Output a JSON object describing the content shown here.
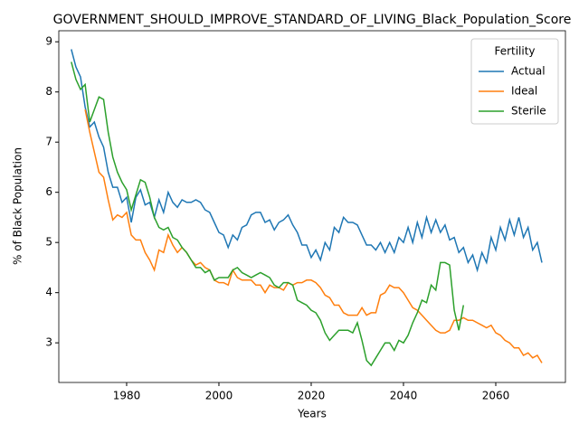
{
  "chart_data": {
    "type": "line",
    "title": "GOVERNMENT_SHOULD_IMPROVE_STANDARD_OF_LIVING_Black_Population_Score",
    "xlabel": "Years",
    "ylabel": "% of Black Population",
    "legend_title": "Fertility",
    "legend": "upper right",
    "xlim": [
      1965.3,
      2075.1
    ],
    "ylim": [
      2.21,
      9.22
    ],
    "xticks": [
      1980,
      2000,
      2020,
      2040,
      2060
    ],
    "yticks": [
      3,
      4,
      5,
      6,
      7,
      8,
      9
    ],
    "x": [
      1968,
      1969,
      1970,
      1971,
      1972,
      1973,
      1974,
      1975,
      1976,
      1977,
      1978,
      1979,
      1980,
      1981,
      1982,
      1983,
      1984,
      1985,
      1986,
      1987,
      1988,
      1989,
      1990,
      1991,
      1992,
      1993,
      1994,
      1995,
      1996,
      1997,
      1998,
      1999,
      2000,
      2001,
      2002,
      2003,
      2004,
      2005,
      2006,
      2007,
      2008,
      2009,
      2010,
      2011,
      2012,
      2013,
      2014,
      2015,
      2016,
      2017,
      2018,
      2019,
      2020,
      2021,
      2022,
      2023,
      2024,
      2025,
      2026,
      2027,
      2028,
      2029,
      2030,
      2031,
      2032,
      2033,
      2034,
      2035,
      2036,
      2037,
      2038,
      2039,
      2040,
      2041,
      2042,
      2043,
      2044,
      2045,
      2046,
      2047,
      2048,
      2049,
      2050,
      2051,
      2052,
      2053,
      2054,
      2055,
      2056,
      2057,
      2058,
      2059,
      2060,
      2061,
      2062,
      2063,
      2064,
      2065,
      2066,
      2067,
      2068,
      2069,
      2070
    ],
    "series": [
      {
        "name": "Actual",
        "color": "#1f77b4",
        "values": [
          8.85,
          8.5,
          8.3,
          7.7,
          7.3,
          7.4,
          7.1,
          6.9,
          6.4,
          6.1,
          6.1,
          5.8,
          5.9,
          5.4,
          5.9,
          6.05,
          5.75,
          5.8,
          5.5,
          5.85,
          5.6,
          6.0,
          5.8,
          5.7,
          5.85,
          5.8,
          5.8,
          5.85,
          5.8,
          5.65,
          5.6,
          5.4,
          5.2,
          5.15,
          4.9,
          5.15,
          5.05,
          5.3,
          5.35,
          5.55,
          5.6,
          5.6,
          5.4,
          5.45,
          5.25,
          5.4,
          5.45,
          5.55,
          5.35,
          5.2,
          4.95,
          4.95,
          4.7,
          4.85,
          4.65,
          5.0,
          4.85,
          5.3,
          5.2,
          5.5,
          5.4,
          5.4,
          5.35,
          5.15,
          4.95,
          4.95,
          4.85,
          5.0,
          4.8,
          5.0,
          4.8,
          5.1,
          5.0,
          5.3,
          5.0,
          5.4,
          5.1,
          5.5,
          5.2,
          5.45,
          5.2,
          5.35,
          5.05,
          5.1,
          4.8,
          4.9,
          4.6,
          4.75,
          4.45,
          4.8,
          4.6,
          5.1,
          4.85,
          5.3,
          5.05,
          5.45,
          5.15,
          5.5,
          5.1,
          5.3,
          4.85,
          5.0,
          4.6
        ]
      },
      {
        "name": "Ideal",
        "color": "#ff7f0e",
        "values": [
          null,
          null,
          null,
          7.65,
          7.2,
          6.8,
          6.4,
          6.3,
          5.85,
          5.45,
          5.55,
          5.5,
          5.6,
          5.15,
          5.05,
          5.05,
          4.8,
          4.65,
          4.45,
          4.85,
          4.8,
          5.15,
          4.95,
          4.8,
          4.9,
          4.8,
          4.65,
          4.55,
          4.6,
          4.5,
          4.45,
          4.25,
          4.2,
          4.2,
          4.15,
          4.45,
          4.3,
          4.25,
          4.25,
          4.25,
          4.15,
          4.15,
          4.0,
          4.15,
          4.1,
          4.1,
          4.05,
          4.2,
          4.15,
          4.2,
          4.2,
          4.25,
          4.25,
          4.2,
          4.1,
          3.95,
          3.9,
          3.75,
          3.75,
          3.6,
          3.55,
          3.55,
          3.55,
          3.7,
          3.55,
          3.6,
          3.6,
          3.95,
          4.0,
          4.15,
          4.1,
          4.1,
          4.0,
          3.85,
          3.7,
          3.65,
          3.55,
          3.45,
          3.35,
          3.25,
          3.2,
          3.2,
          3.25,
          3.45,
          3.45,
          3.5,
          3.45,
          3.45,
          3.4,
          3.35,
          3.3,
          3.35,
          3.2,
          3.15,
          3.05,
          3.0,
          2.9,
          2.9,
          2.75,
          2.8,
          2.7,
          2.75,
          2.6
        ]
      },
      {
        "name": "Sterile",
        "color": "#2ca02c",
        "values": [
          8.6,
          8.25,
          8.05,
          8.15,
          7.4,
          7.65,
          7.9,
          7.85,
          7.2,
          6.7,
          6.4,
          6.2,
          6.05,
          5.65,
          5.95,
          6.25,
          6.2,
          5.9,
          5.5,
          5.3,
          5.25,
          5.3,
          5.1,
          5.05,
          4.9,
          4.8,
          4.65,
          4.5,
          4.5,
          4.4,
          4.45,
          4.25,
          4.3,
          4.3,
          4.3,
          4.45,
          4.5,
          4.4,
          4.35,
          4.3,
          4.35,
          4.4,
          4.35,
          4.3,
          4.15,
          4.1,
          4.2,
          4.2,
          4.15,
          3.85,
          3.8,
          3.75,
          3.65,
          3.6,
          3.45,
          3.2,
          3.05,
          3.15,
          3.25,
          3.25,
          3.25,
          3.2,
          3.4,
          3.05,
          2.65,
          2.55,
          2.7,
          2.85,
          3.0,
          3.0,
          2.85,
          3.05,
          3.0,
          3.15,
          3.4,
          3.6,
          3.85,
          3.8,
          4.15,
          4.05,
          4.6,
          4.6,
          4.55,
          3.65,
          3.25,
          3.75,
          null,
          null,
          null,
          null,
          null,
          null,
          null,
          null,
          null,
          null,
          null,
          null,
          null,
          null,
          null,
          null,
          null
        ]
      }
    ]
  }
}
